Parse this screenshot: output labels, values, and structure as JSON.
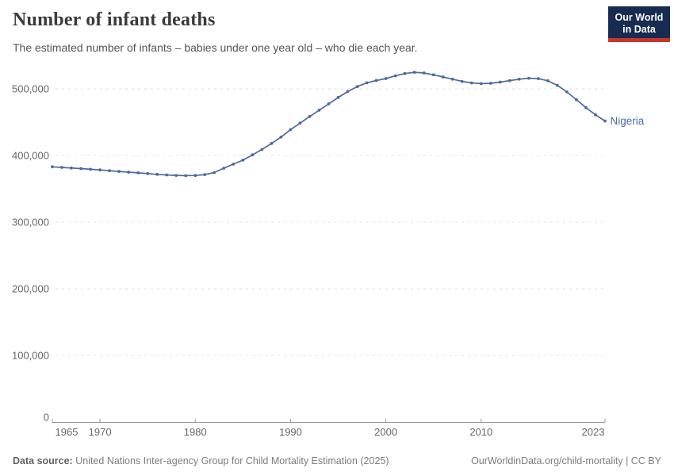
{
  "header": {
    "title": "Number of infant deaths",
    "subtitle": "The estimated number of infants – babies under one year old – who die each year.",
    "logo": {
      "line1": "Our World",
      "line2": "in Data"
    }
  },
  "chart_data": {
    "type": "line",
    "title": "Number of infant deaths",
    "grid": "horizontal-dashed",
    "legend_position": "end-of-line-label",
    "end_label": "Nigeria",
    "x_range": [
      1965,
      2023
    ],
    "y_range": [
      0,
      540000
    ],
    "x_ticks": [
      {
        "value": 1965,
        "label": "1965"
      },
      {
        "value": 1970,
        "label": "1970"
      },
      {
        "value": 1980,
        "label": "1980"
      },
      {
        "value": 1990,
        "label": "1990"
      },
      {
        "value": 2000,
        "label": "2000"
      },
      {
        "value": 2010,
        "label": "2010"
      },
      {
        "value": 2023,
        "label": "2023"
      }
    ],
    "y_ticks": [
      {
        "value": 0,
        "label": "0"
      },
      {
        "value": 100000,
        "label": "100,000"
      },
      {
        "value": 200000,
        "label": "200,000"
      },
      {
        "value": 300000,
        "label": "300,000"
      },
      {
        "value": 400000,
        "label": "400,000"
      },
      {
        "value": 500000,
        "label": "500,000"
      }
    ],
    "series": [
      {
        "name": "Nigeria",
        "color": "#4c6a9e",
        "years": [
          1965,
          1966,
          1967,
          1968,
          1969,
          1970,
          1971,
          1972,
          1973,
          1974,
          1975,
          1976,
          1977,
          1978,
          1979,
          1980,
          1981,
          1982,
          1983,
          1984,
          1985,
          1986,
          1987,
          1988,
          1989,
          1990,
          1991,
          1992,
          1993,
          1994,
          1995,
          1996,
          1997,
          1998,
          1999,
          2000,
          2001,
          2002,
          2003,
          2004,
          2005,
          2006,
          2007,
          2008,
          2009,
          2010,
          2011,
          2012,
          2013,
          2014,
          2015,
          2016,
          2017,
          2018,
          2019,
          2020,
          2021,
          2022,
          2023
        ],
        "values": [
          383000,
          382100,
          381200,
          380300,
          379300,
          378300,
          377200,
          376100,
          375000,
          373900,
          372800,
          371700,
          370800,
          370100,
          369800,
          370000,
          371300,
          374500,
          381000,
          387000,
          393000,
          401000,
          409000,
          418000,
          427600,
          438800,
          448600,
          458500,
          468000,
          477500,
          487000,
          496000,
          503500,
          509000,
          512500,
          515500,
          519500,
          523000,
          524900,
          523800,
          521100,
          517900,
          514500,
          511200,
          508900,
          507800,
          508300,
          510100,
          512400,
          514500,
          515900,
          515400,
          512100,
          505200,
          495300,
          483800,
          471800,
          461100,
          451800
        ]
      }
    ]
  },
  "footer": {
    "datasource_label": "Data source:",
    "datasource_text": " United Nations Inter-agency Group for Child Mortality Estimation (2025)",
    "rights": "OurWorldinData.org/child-mortality | CC BY"
  },
  "colors": {
    "line": "#4c6a9e",
    "grid": "#e0e0e0",
    "axis": "#999999",
    "tick_label": "#666666",
    "logo_bg": "#182c51",
    "logo_bar": "#c5372d"
  }
}
